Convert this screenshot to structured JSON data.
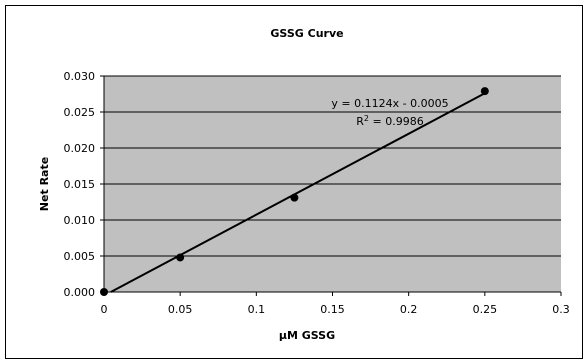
{
  "chart_data": {
    "type": "scatter",
    "title": "GSSG Curve",
    "xlabel": "µM GSSG",
    "ylabel": "Net Rate",
    "xlim": [
      0,
      0.3
    ],
    "ylim": [
      0,
      0.03
    ],
    "x_ticks": [
      "0",
      "0.05",
      "0.1",
      "0.15",
      "0.2",
      "0.25",
      "0.3"
    ],
    "x_tick_values": [
      0,
      0.05,
      0.1,
      0.15,
      0.2,
      0.25,
      0.3
    ],
    "y_ticks": [
      "0.000",
      "0.005",
      "0.010",
      "0.015",
      "0.020",
      "0.025",
      "0.030"
    ],
    "y_tick_values": [
      0,
      0.005,
      0.01,
      0.015,
      0.02,
      0.025,
      0.03
    ],
    "grid": "horizontal",
    "series": [
      {
        "x": [
          0,
          0.05,
          0.125,
          0.25
        ],
        "y": [
          0.0,
          0.0048,
          0.0131,
          0.0279
        ]
      }
    ],
    "trendline": {
      "type": "linear",
      "slope": 0.1124,
      "intercept": -0.0005,
      "equation": "y = 0.1124x - 0.0005",
      "r2_label": "R",
      "r2_sup": "2",
      "r2_value": " = 0.9986"
    },
    "colors": {
      "plot_background": "#c0c0c0",
      "marker": "#000000",
      "line": "#000000",
      "gridline": "#000000"
    }
  }
}
